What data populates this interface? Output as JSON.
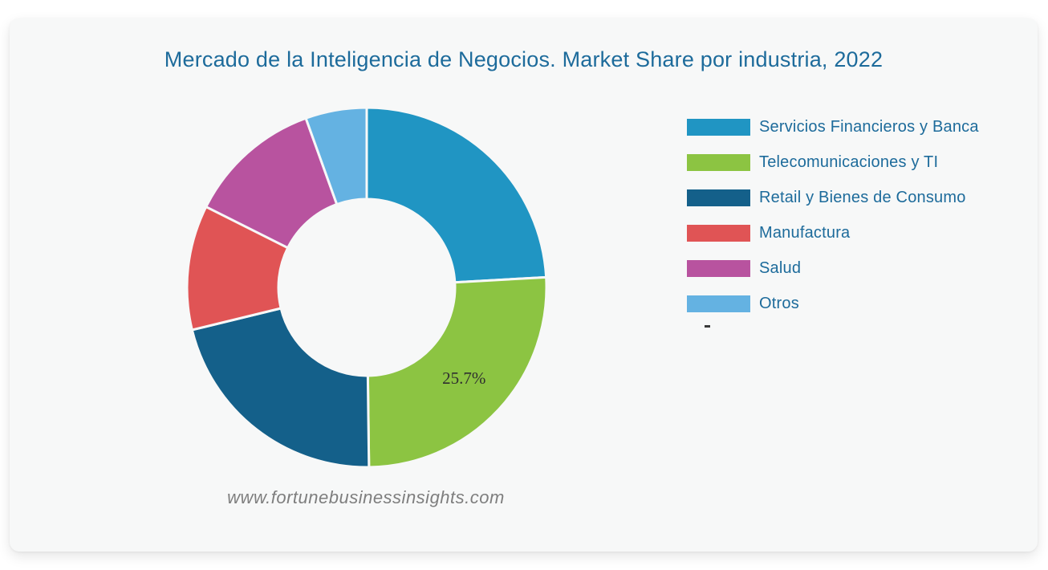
{
  "title": "Mercado de la Inteligencia de Negocios. Market Share por industria, 2022",
  "watermark": "www.fortunebusinessinsights.com",
  "colors": {
    "page_bg": "#ffffff",
    "card_bg": "#f7f8f8",
    "title_text": "#1d6b9b",
    "legend_text": "#1d6b9b",
    "value_label_text": "#2f2f2f",
    "watermark_text": "#7e7e7e"
  },
  "chart_data": {
    "type": "pie",
    "subtype": "donut",
    "title": "Mercado de la Inteligencia de Negocios. Market Share por industria, 2022",
    "legend_position": "right",
    "start_angle_deg": 0,
    "direction": "clockwise",
    "inner_radius_ratio": 0.49,
    "segments": [
      {
        "label": "Servicios Financieros y Banca",
        "value_pct": 24.1,
        "color": "#2095c3",
        "data_label": ""
      },
      {
        "label": "Telecomunicaciones y TI",
        "value_pct": 25.7,
        "color": "#8cc442",
        "data_label": "25.7%"
      },
      {
        "label": "Retail y Bienes de Consumo",
        "value_pct": 21.4,
        "color": "#14608a",
        "data_label": ""
      },
      {
        "label": "Manufactura",
        "value_pct": 11.2,
        "color": "#e05455",
        "data_label": ""
      },
      {
        "label": "Salud",
        "value_pct": 12.1,
        "color": "#b8539f",
        "data_label": ""
      },
      {
        "label": "Otros",
        "value_pct": 5.5,
        "color": "#64b2e2",
        "data_label": ""
      }
    ]
  }
}
